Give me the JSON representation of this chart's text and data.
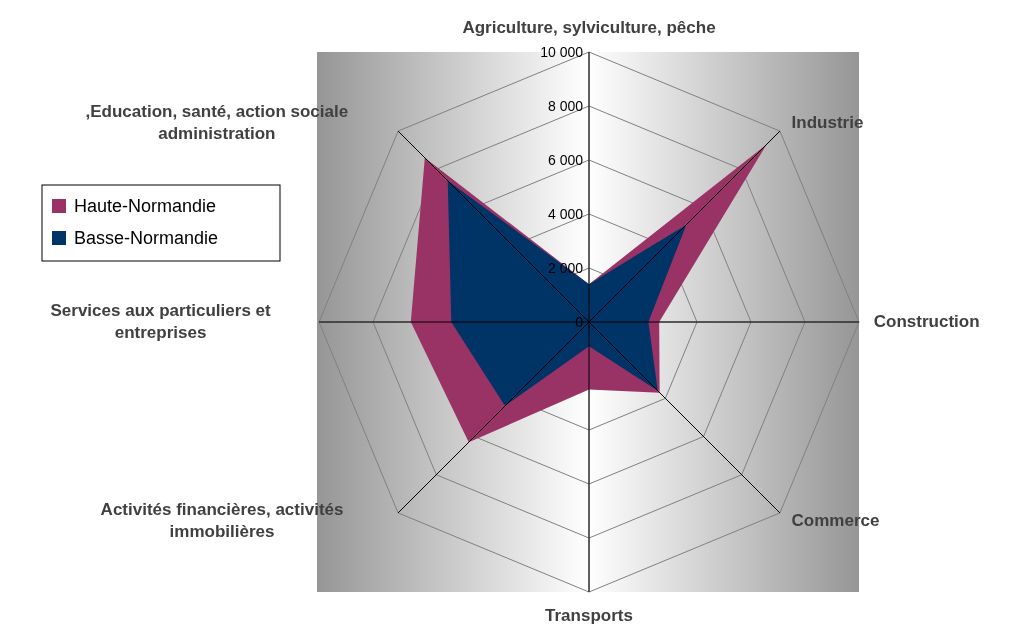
{
  "chart_data": {
    "type": "radar",
    "categories": [
      "Agriculture, sylviculture, pêche",
      "Industrie",
      "Construction",
      "Commerce",
      "Transports",
      "Activités financières, activités\nimmobilières",
      "Services aux particuliers et\nentreprises",
      ",Education, santé, action sociale\nadministration"
    ],
    "series": [
      {
        "name": "Haute-Normandie",
        "color": "#993366",
        "values": [
          1400,
          9300,
          2600,
          3700,
          2500,
          6300,
          6600,
          8600
        ]
      },
      {
        "name": "Basse-Normandie",
        "color": "#003366",
        "values": [
          1400,
          5100,
          2200,
          3600,
          900,
          4400,
          5100,
          7400
        ]
      }
    ],
    "ylim": [
      0,
      10000
    ],
    "yticks": [
      {
        "value": 0,
        "label": "0"
      },
      {
        "value": 2000,
        "label": "2 000"
      },
      {
        "value": 4000,
        "label": "4 000"
      },
      {
        "value": 6000,
        "label": "6 000"
      },
      {
        "value": 8000,
        "label": "8 000"
      },
      {
        "value": 10000,
        "label": "10 000"
      }
    ],
    "grid": true,
    "legend": "left"
  }
}
